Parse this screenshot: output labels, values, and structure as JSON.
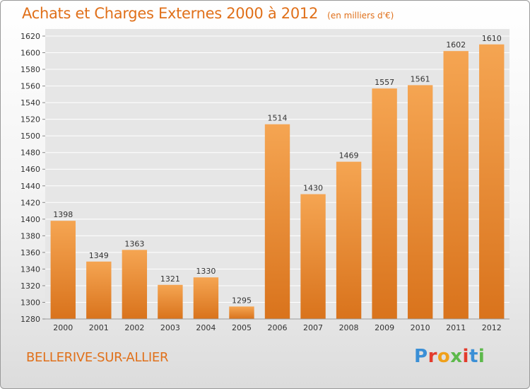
{
  "header": {
    "title": "Achats et Charges Externes 2000 à 2012",
    "unit": "(en milliers d'€)"
  },
  "footer": {
    "town": "BELLERIVE-SUR-ALLIER",
    "logo": "Proxiti"
  },
  "colors": {
    "bar_top": "#f5a552",
    "bar_bottom": "#d9731c",
    "title": "#e0701a",
    "grid": "#ffffff"
  },
  "chart_data": {
    "type": "bar",
    "categories": [
      "2000",
      "2001",
      "2002",
      "2003",
      "2004",
      "2005",
      "2006",
      "2007",
      "2008",
      "2009",
      "2010",
      "2011",
      "2012"
    ],
    "values": [
      1398,
      1349,
      1363,
      1321,
      1330,
      1295,
      1514,
      1430,
      1469,
      1557,
      1561,
      1602,
      1610
    ],
    "ylim": [
      1280,
      1620
    ],
    "yticks": [
      1280,
      1300,
      1320,
      1340,
      1360,
      1380,
      1400,
      1420,
      1440,
      1460,
      1480,
      1500,
      1520,
      1540,
      1560,
      1580,
      1600,
      1620
    ],
    "grid": true,
    "title": "Achats et Charges Externes 2000 à 2012",
    "xlabel": "",
    "ylabel": ""
  }
}
